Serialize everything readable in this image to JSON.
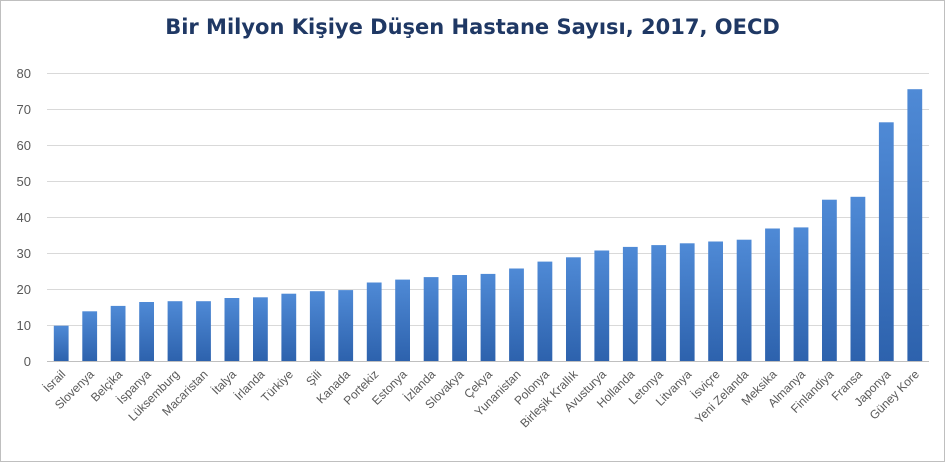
{
  "chart_data": {
    "type": "bar",
    "title": "Bir Milyon Kişiye Düşen Hastane Sayısı, 2017, OECD",
    "xlabel": "",
    "ylabel": "",
    "ylim": [
      0,
      80
    ],
    "yticks": [
      0,
      10,
      20,
      30,
      40,
      50,
      60,
      70,
      80
    ],
    "grid": true,
    "legend": "none",
    "bar_color": "#3a76c2",
    "categories": [
      "İsrail",
      "Slovenya",
      "Belçika",
      "İspanya",
      "Lüksemburg",
      "Macaristan",
      "İtalya",
      "İrlanda",
      "Türkiye",
      "Şili",
      "Kanada",
      "Portekiz",
      "Estonya",
      "İzlanda",
      "Slovakya",
      "Çekya",
      "Yunanistan",
      "Polonya",
      "Birleşik Krallık",
      "Avusturya",
      "Hollanda",
      "Letonya",
      "Litvanya",
      "İsviçre",
      "Yeni Zelanda",
      "Meksika",
      "Almanya",
      "Finlandiya",
      "Fransa",
      "Japonya",
      "Güney Kore"
    ],
    "values": [
      9.8,
      13.8,
      15.3,
      16.4,
      16.6,
      16.6,
      17.5,
      17.7,
      18.7,
      19.4,
      19.7,
      21.8,
      22.6,
      23.3,
      23.9,
      24.2,
      25.7,
      27.6,
      28.8,
      30.7,
      31.7,
      32.2,
      32.7,
      33.2,
      33.7,
      36.8,
      37.1,
      44.8,
      45.6,
      66.3,
      75.5
    ]
  }
}
